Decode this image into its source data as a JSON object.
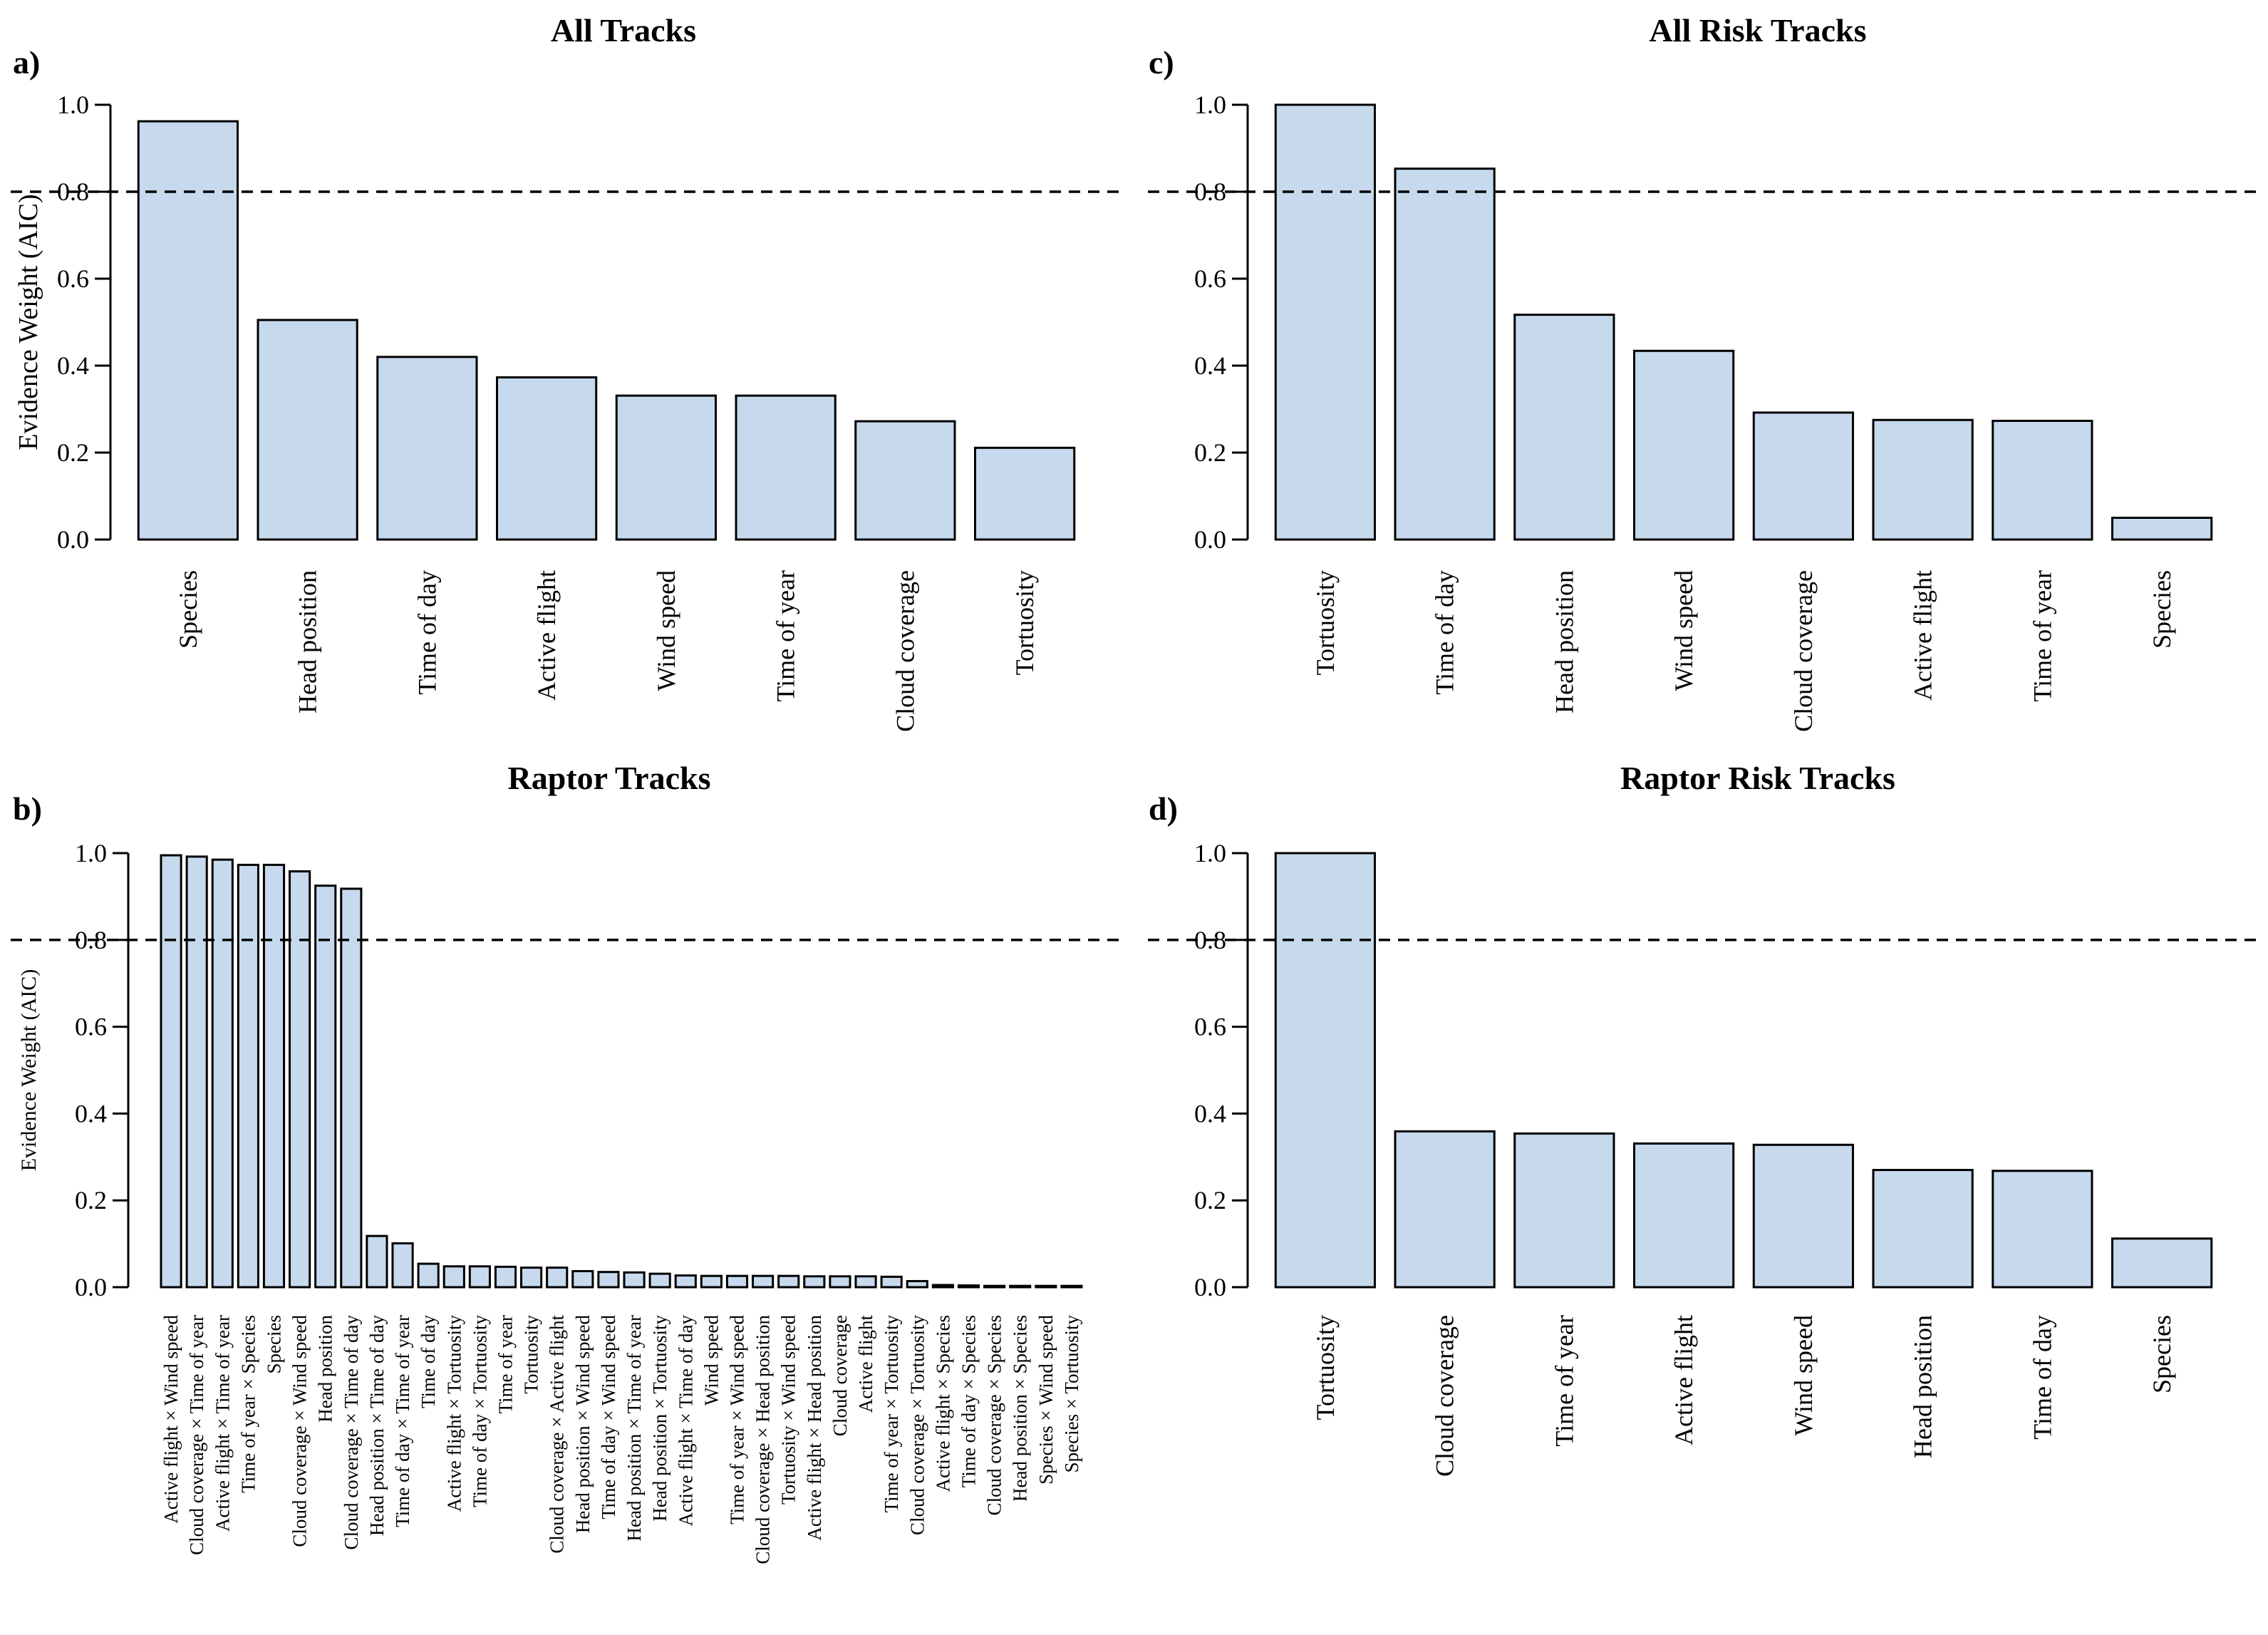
{
  "colors": {
    "bar_fill": "#c6d9ed",
    "bar_stroke": "#000000",
    "reference_line": "#000000"
  },
  "chart_data": [
    {
      "id": "a",
      "letter": "a)",
      "type": "bar",
      "title": "All Tracks",
      "xlabel": "",
      "ylabel": "Evidence Weight (AIC)",
      "ylim": [
        0,
        1
      ],
      "yticks": [
        "0.0",
        "0.2",
        "0.4",
        "0.6",
        "0.8",
        "1.0"
      ],
      "reference_line": 0.8,
      "grid": false,
      "categories": [
        "Species",
        "Head position",
        "Time of day",
        "Active flight",
        "Wind speed",
        "Time of year",
        "Cloud coverage",
        "Tortuosity"
      ],
      "values": [
        0.962,
        0.505,
        0.42,
        0.373,
        0.331,
        0.331,
        0.272,
        0.211
      ]
    },
    {
      "id": "c",
      "letter": "c)",
      "type": "bar",
      "title": "All Risk Tracks",
      "xlabel": "",
      "ylabel": "",
      "ylim": [
        0,
        1
      ],
      "yticks": [
        "0.0",
        "0.2",
        "0.4",
        "0.6",
        "0.8",
        "1.0"
      ],
      "reference_line": 0.8,
      "grid": false,
      "categories": [
        "Tortuosity",
        "Time of day",
        "Head position",
        "Wind speed",
        "Cloud coverage",
        "Active flight",
        "Time of year",
        "Species"
      ],
      "values": [
        1.0,
        0.853,
        0.517,
        0.434,
        0.292,
        0.275,
        0.273,
        0.05
      ]
    },
    {
      "id": "b",
      "letter": "b)",
      "type": "bar",
      "title": "Raptor Tracks",
      "xlabel": "",
      "ylabel": "Evidence Weight (AIC)",
      "ylim": [
        0,
        1
      ],
      "yticks": [
        "0.0",
        "0.2",
        "0.4",
        "0.6",
        "0.8",
        "1.0"
      ],
      "reference_line": 0.8,
      "grid": false,
      "categories": [
        "Active flight × Wind speed",
        "Cloud coverage × Time of year",
        "Active flight × Time of year",
        "Time of year × Species",
        "Species",
        "Cloud coverage × Wind speed",
        "Head position",
        "Cloud coverage × Time of day",
        "Head position × Time of day",
        "Time of day × Time of year",
        "Time of day",
        "Active flight × Tortuosity",
        "Time of day × Tortuosity",
        "Time of year",
        "Tortuosity",
        "Cloud coverage × Active flight",
        "Head position × Wind speed",
        "Time of day × Wind speed",
        "Head position × Time of year",
        "Head position × Tortuosity",
        "Active flight × Time of day",
        "Wind speed",
        "Time of year × Wind speed",
        "Cloud coverage × Head position",
        "Tortuosity × Wind speed",
        "Active flight × Head position",
        "Cloud coverage",
        "Active flight",
        "Time of year × Tortuosity",
        "Cloud coverage × Tortuosity",
        "Active flight × Species",
        "Time of day × Species",
        "Cloud coverage × Species",
        "Head position × Species",
        "Species × Wind speed",
        "Species × Tortuosity"
      ],
      "values": [
        0.995,
        0.992,
        0.985,
        0.973,
        0.973,
        0.958,
        0.925,
        0.918,
        0.118,
        0.101,
        0.054,
        0.048,
        0.048,
        0.047,
        0.045,
        0.045,
        0.037,
        0.035,
        0.034,
        0.031,
        0.027,
        0.026,
        0.026,
        0.026,
        0.026,
        0.025,
        0.025,
        0.025,
        0.024,
        0.014,
        0.005,
        0.004,
        0.003,
        0.003,
        0.003,
        0.003
      ]
    },
    {
      "id": "d",
      "letter": "d)",
      "type": "bar",
      "title": "Raptor Risk Tracks",
      "xlabel": "",
      "ylabel": "",
      "ylim": [
        0,
        1
      ],
      "yticks": [
        "0.0",
        "0.2",
        "0.4",
        "0.6",
        "0.8",
        "1.0"
      ],
      "reference_line": 0.8,
      "grid": false,
      "categories": [
        "Tortuosity",
        "Cloud coverage",
        "Time of year",
        "Active flight",
        "Wind speed",
        "Head position",
        "Time of day",
        "Species"
      ],
      "values": [
        1.0,
        0.359,
        0.354,
        0.331,
        0.328,
        0.27,
        0.268,
        0.112
      ]
    }
  ]
}
